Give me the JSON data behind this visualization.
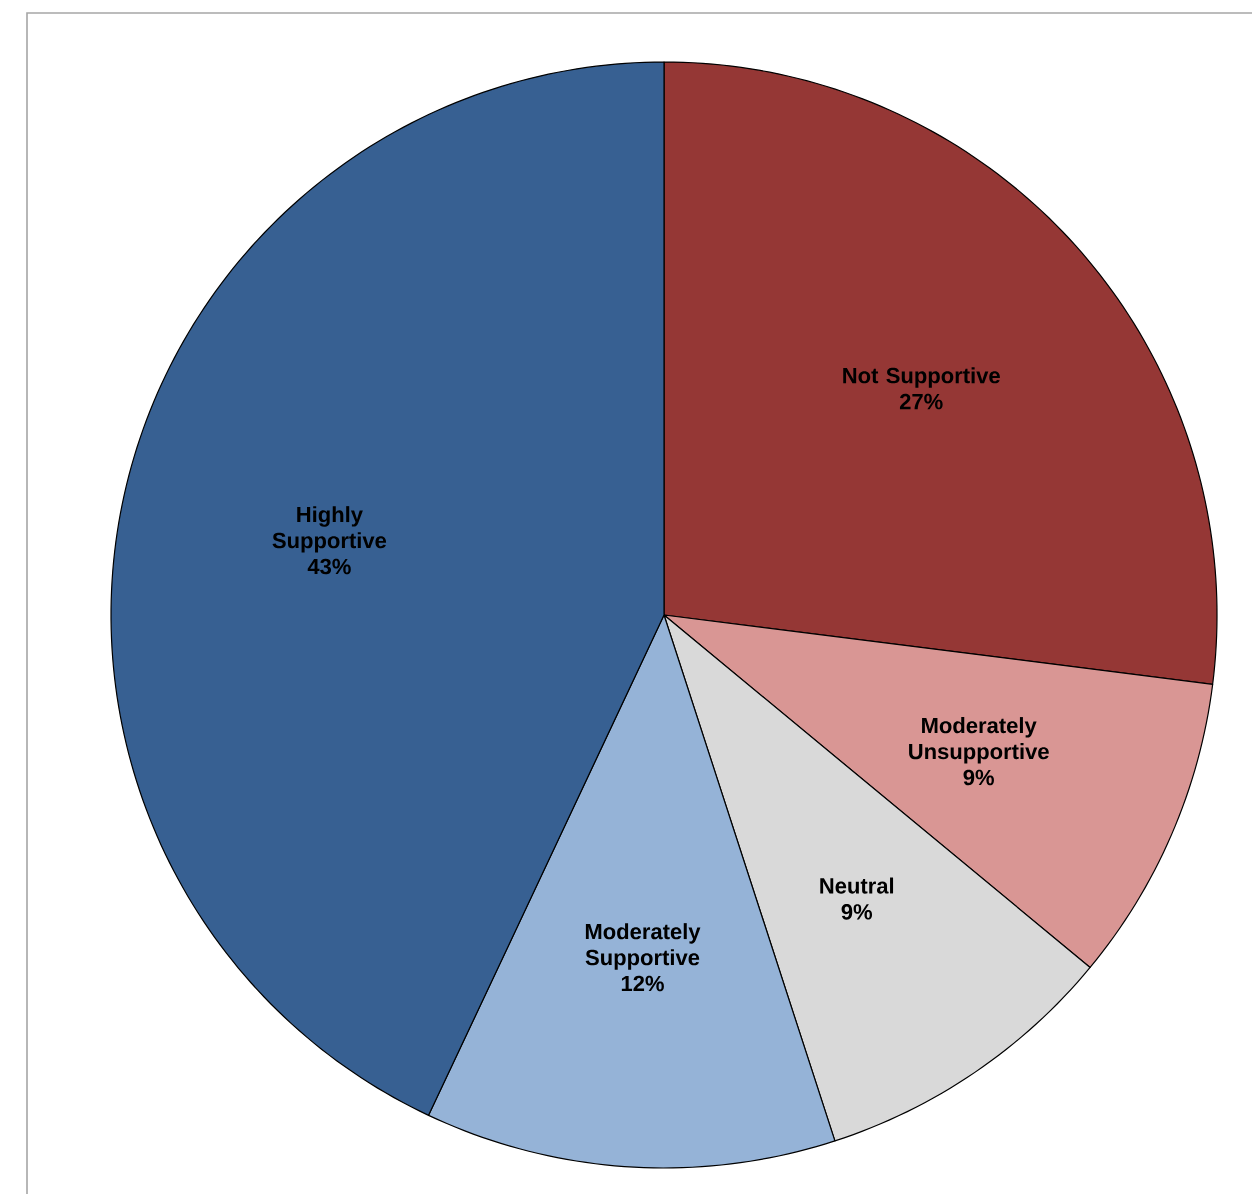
{
  "chart_data": {
    "type": "pie",
    "categories": [
      "Not Supportive",
      "Moderately Unsupportive",
      "Neutral",
      "Moderately Supportive",
      "Highly Supportive"
    ],
    "values": [
      27,
      9,
      9,
      12,
      43
    ],
    "value_labels": [
      "27%",
      "9%",
      "9%",
      "12%",
      "43%"
    ],
    "colors": [
      "#953735",
      "#d99694",
      "#d9d9d9",
      "#95b3d7",
      "#376092"
    ]
  }
}
